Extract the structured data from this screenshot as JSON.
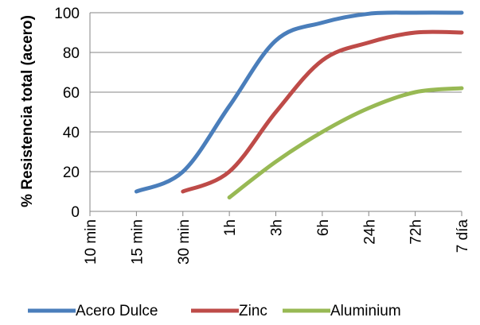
{
  "chart_data": {
    "type": "line",
    "title": "",
    "xlabel": "",
    "ylabel": "% Resistencia total (acero)",
    "categories": [
      "10 min",
      "15 min",
      "30 min",
      "1h",
      "3h",
      "6h",
      "24h",
      "72h",
      "7 día"
    ],
    "ylim": [
      0,
      100
    ],
    "yticks": [
      0,
      20,
      40,
      60,
      80,
      100
    ],
    "grid": "horizontal",
    "legend_position": "bottom",
    "series": [
      {
        "name": "Acero Dulce",
        "color": "#4a7ebb",
        "points": [
          [
            1,
            10
          ],
          [
            2,
            20
          ],
          [
            3,
            53
          ],
          [
            4,
            86
          ],
          [
            5,
            95
          ],
          [
            6,
            99.5
          ],
          [
            7,
            100
          ],
          [
            8,
            100
          ]
        ]
      },
      {
        "name": "Zinc",
        "color": "#be4b48",
        "points": [
          [
            2,
            10
          ],
          [
            3,
            20
          ],
          [
            4,
            50
          ],
          [
            5,
            76
          ],
          [
            6,
            85
          ],
          [
            7,
            90
          ],
          [
            8,
            90
          ]
        ]
      },
      {
        "name": "Aluminium",
        "color": "#98b954",
        "points": [
          [
            3,
            7
          ],
          [
            4,
            25
          ],
          [
            5,
            40
          ],
          [
            6,
            52
          ],
          [
            7,
            60
          ],
          [
            8,
            62
          ]
        ]
      }
    ]
  }
}
